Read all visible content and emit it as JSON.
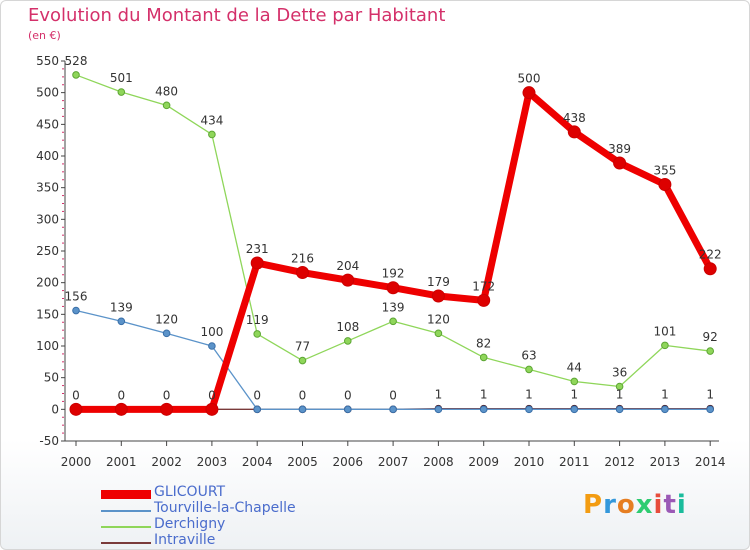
{
  "header": {
    "title": "Evolution du Montant de la Dette par Habitant",
    "unit": "(en €)"
  },
  "logo": {
    "text": "Proxiti"
  },
  "colors": {
    "GLICOURT": "#ee0000",
    "Tourville-la-Chapelle": "#5b93c9",
    "Derchigny": "#8fd65a",
    "Intraville": "#7a3a3a",
    "title": "#d4306a",
    "legend_text": "#4a6ccc"
  },
  "chart_data": {
    "type": "line",
    "x": [
      "2000",
      "2001",
      "2002",
      "2003",
      "2004",
      "2005",
      "2006",
      "2007",
      "2008",
      "2009",
      "2010",
      "2011",
      "2012",
      "2013",
      "2014"
    ],
    "ylim": [
      -50,
      550
    ],
    "yticks": [
      -50,
      0,
      50,
      100,
      150,
      200,
      250,
      300,
      350,
      400,
      450,
      500,
      550
    ],
    "grid": false,
    "legend_position": "bottom-left",
    "series": [
      {
        "name": "GLICOURT",
        "values": [
          0,
          0,
          0,
          0,
          231,
          216,
          204,
          192,
          179,
          172,
          500,
          438,
          389,
          355,
          222
        ],
        "labels": [
          "0",
          "0",
          "0",
          "0",
          "231",
          "216",
          "204",
          "192",
          "179",
          "172",
          "500",
          "438",
          "389",
          "355",
          "222"
        ]
      },
      {
        "name": "Tourville-la-Chapelle",
        "values": [
          156,
          139,
          120,
          100,
          0,
          0,
          0,
          0,
          0,
          0,
          0,
          0,
          0,
          0,
          0
        ],
        "labels": [
          "156",
          "139",
          "120",
          "100",
          "",
          "",
          "",
          "",
          "",
          "",
          "",
          "",
          "",
          "",
          ""
        ]
      },
      {
        "name": "Derchigny",
        "values": [
          528,
          501,
          480,
          434,
          119,
          77,
          108,
          139,
          120,
          82,
          63,
          44,
          36,
          101,
          92
        ],
        "labels": [
          "528",
          "501",
          "480",
          "434",
          "119",
          "77",
          "108",
          "139",
          "120",
          "82",
          "63",
          "44",
          "36",
          "101",
          "92"
        ]
      },
      {
        "name": "Intraville",
        "values": [
          0,
          0,
          0,
          0,
          0,
          0,
          0,
          0,
          1,
          1,
          1,
          1,
          1,
          1,
          1
        ],
        "labels": [
          "",
          "",
          "",
          "",
          "0",
          "0",
          "0",
          "0",
          "1",
          "1",
          "1",
          "1",
          "1",
          "1",
          "1"
        ]
      }
    ]
  }
}
